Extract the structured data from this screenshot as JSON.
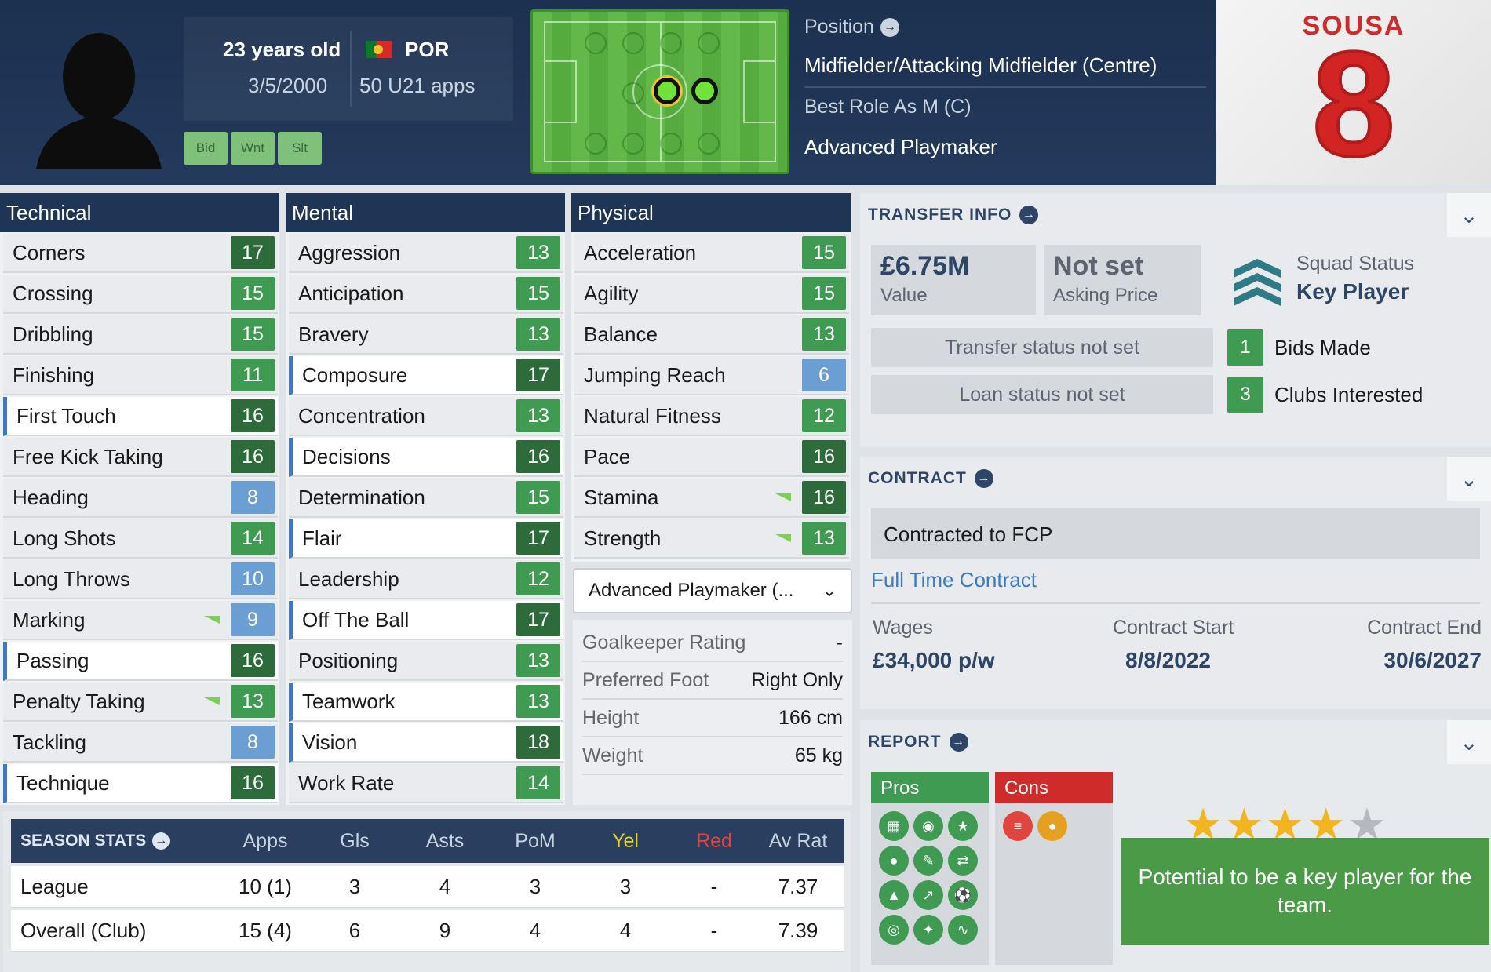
{
  "header": {
    "age": "23 years old",
    "dob": "3/5/2000",
    "nationality": "POR",
    "u21_apps": "50 U21 apps",
    "tags": [
      "Bid",
      "Wnt",
      "Slt"
    ],
    "position_label": "Position",
    "position_value": "Midfielder/Attacking Midfielder (Centre)",
    "best_role_label": "Best Role As M (C)",
    "role": "Advanced Playmaker",
    "shirt_name": "SOUSA",
    "shirt_number": "8"
  },
  "technical": {
    "title": "Technical",
    "rows": [
      {
        "label": "Corners",
        "value": "17"
      },
      {
        "label": "Crossing",
        "value": "15"
      },
      {
        "label": "Dribbling",
        "value": "15"
      },
      {
        "label": "Finishing",
        "value": "11"
      },
      {
        "label": "First Touch",
        "value": "16"
      },
      {
        "label": "Free Kick Taking",
        "value": "16"
      },
      {
        "label": "Heading",
        "value": "8"
      },
      {
        "label": "Long Shots",
        "value": "14"
      },
      {
        "label": "Long Throws",
        "value": "10"
      },
      {
        "label": "Marking",
        "value": "9"
      },
      {
        "label": "Passing",
        "value": "16"
      },
      {
        "label": "Penalty Taking",
        "value": "13"
      },
      {
        "label": "Tackling",
        "value": "8"
      },
      {
        "label": "Technique",
        "value": "16"
      }
    ]
  },
  "mental": {
    "title": "Mental",
    "rows": [
      {
        "label": "Aggression",
        "value": "13"
      },
      {
        "label": "Anticipation",
        "value": "15"
      },
      {
        "label": "Bravery",
        "value": "13"
      },
      {
        "label": "Composure",
        "value": "17"
      },
      {
        "label": "Concentration",
        "value": "13"
      },
      {
        "label": "Decisions",
        "value": "16"
      },
      {
        "label": "Determination",
        "value": "15"
      },
      {
        "label": "Flair",
        "value": "17"
      },
      {
        "label": "Leadership",
        "value": "12"
      },
      {
        "label": "Off The Ball",
        "value": "17"
      },
      {
        "label": "Positioning",
        "value": "13"
      },
      {
        "label": "Teamwork",
        "value": "13"
      },
      {
        "label": "Vision",
        "value": "18"
      },
      {
        "label": "Work Rate",
        "value": "14"
      }
    ]
  },
  "physical": {
    "title": "Physical",
    "rows": [
      {
        "label": "Acceleration",
        "value": "15"
      },
      {
        "label": "Agility",
        "value": "15"
      },
      {
        "label": "Balance",
        "value": "13"
      },
      {
        "label": "Jumping Reach",
        "value": "6"
      },
      {
        "label": "Natural Fitness",
        "value": "12"
      },
      {
        "label": "Pace",
        "value": "16"
      },
      {
        "label": "Stamina",
        "value": "16"
      },
      {
        "label": "Strength",
        "value": "13"
      }
    ],
    "role_dropdown": "Advanced Playmaker (...",
    "details": [
      {
        "label": "Goalkeeper Rating",
        "value": "-"
      },
      {
        "label": "Preferred Foot",
        "value": "Right Only"
      },
      {
        "label": "Height",
        "value": "166 cm"
      },
      {
        "label": "Weight",
        "value": "65 kg"
      }
    ]
  },
  "season_stats": {
    "title": "SEASON STATS",
    "columns": [
      "Apps",
      "Gls",
      "Asts",
      "PoM",
      "Yel",
      "Red",
      "Av Rat"
    ],
    "rows": [
      {
        "name": "League",
        "values": [
          "10 (1)",
          "3",
          "4",
          "3",
          "3",
          "-",
          "7.37"
        ]
      },
      {
        "name": "Overall (Club)",
        "values": [
          "15 (4)",
          "6",
          "9",
          "4",
          "4",
          "-",
          "7.39"
        ]
      }
    ]
  },
  "transfer": {
    "title": "TRANSFER INFO",
    "value": "£6.75M",
    "value_label": "Value",
    "asking": "Not set",
    "asking_label": "Asking Price",
    "squad_status_label": "Squad Status",
    "squad_status": "Key Player",
    "transfer_status": "Transfer status not set",
    "loan_status": "Loan status not set",
    "bids_count": "1",
    "bids_label": "Bids Made",
    "clubs_count": "3",
    "clubs_label": "Clubs Interested"
  },
  "contract": {
    "title": "CONTRACT",
    "club": "Contracted to FCP",
    "type": "Full Time Contract",
    "wages_label": "Wages",
    "wages": "£34,000 p/w",
    "start_label": "Contract Start",
    "start": "8/8/2022",
    "end_label": "Contract End",
    "end": "30/6/2027"
  },
  "report": {
    "title": "REPORT",
    "pros_label": "Pros",
    "cons_label": "Cons",
    "stars_rating": 4,
    "stars_max": 5,
    "verdict": "Potential to be a key player for the team."
  },
  "colors": {
    "header_bg": "#1c3050",
    "attr_dark": "#2e6b3a",
    "attr_green": "#3f9a52",
    "attr_blue": "#6b9fd4",
    "accent_red": "#cf2b2b",
    "yel": "#e4d22a",
    "red": "#cf2b2b"
  }
}
